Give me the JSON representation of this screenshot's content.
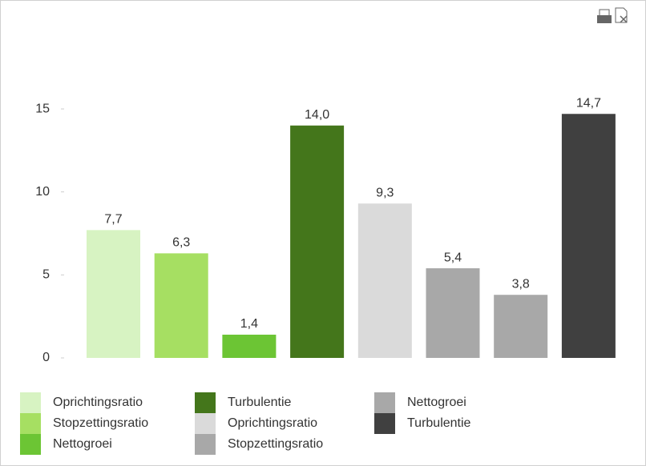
{
  "chart_data": {
    "type": "bar",
    "series": [
      {
        "name": "Oprichtingsratio",
        "color": "#d7f3c2",
        "values": [
          7.7
        ],
        "value_labels": [
          "7,7"
        ]
      },
      {
        "name": "Stopzettingsratio",
        "color": "#a6df62",
        "values": [
          6.3
        ],
        "value_labels": [
          "6,3"
        ]
      },
      {
        "name": "Nettogroei",
        "color": "#6cc534",
        "values": [
          1.4
        ],
        "value_labels": [
          "1,4"
        ]
      },
      {
        "name": "Turbulentie",
        "color": "#44761b",
        "values": [
          14.0
        ],
        "value_labels": [
          "14,0"
        ]
      },
      {
        "name": "Oprichtingsratio",
        "color": "#dadada",
        "values": [
          9.3
        ],
        "value_labels": [
          "9,3"
        ]
      },
      {
        "name": "Stopzettingsratio",
        "color": "#a8a8a8",
        "values": [
          5.4
        ],
        "value_labels": [
          "5,4"
        ]
      },
      {
        "name": "Nettogroei",
        "color": "#a8a8a8",
        "values": [
          3.8
        ],
        "value_labels": [
          "3,8"
        ]
      },
      {
        "name": "Turbulentie",
        "color": "#404040",
        "values": [
          14.7
        ],
        "value_labels": [
          "14,7"
        ]
      }
    ],
    "ylim": [
      0,
      16
    ],
    "yticks": [
      0,
      5,
      10,
      15
    ],
    "grid": false
  }
}
